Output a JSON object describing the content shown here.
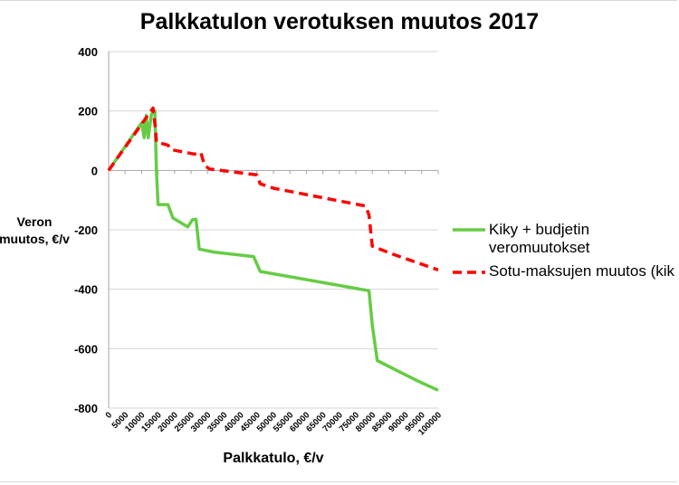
{
  "chart_data": {
    "type": "line",
    "title": "Palkkatulon verotuksen muutos 2017",
    "xlabel": "Palkkatulo, €/v",
    "ylabel": [
      "Veron",
      "muutos, €/v"
    ],
    "ylim": [
      -800,
      400
    ],
    "yticks": [
      400,
      200,
      0,
      -200,
      -400,
      -600,
      -800
    ],
    "xlim": [
      0,
      100000
    ],
    "xticks": [
      0,
      5000,
      10000,
      15000,
      20000,
      25000,
      30000,
      35000,
      40000,
      45000,
      50000,
      55000,
      60000,
      65000,
      70000,
      75000,
      80000,
      85000,
      90000,
      95000,
      100000
    ],
    "grid": "horizontal",
    "legend_position": "right",
    "series": [
      {
        "name_lines": [
          "Kiky + budjetin",
          "veromuutokset"
        ],
        "color": "#66cc44",
        "style": "solid",
        "points": [
          [
            0,
            0
          ],
          [
            10000,
            160
          ],
          [
            10800,
            110
          ],
          [
            11400,
            185
          ],
          [
            12000,
            110
          ],
          [
            13000,
            190
          ],
          [
            14000,
            200
          ],
          [
            14500,
            0
          ],
          [
            15000,
            -115
          ],
          [
            18000,
            -115
          ],
          [
            19500,
            -160
          ],
          [
            24000,
            -190
          ],
          [
            25500,
            -165
          ],
          [
            26500,
            -165
          ],
          [
            27500,
            -265
          ],
          [
            32000,
            -275
          ],
          [
            44000,
            -290
          ],
          [
            46000,
            -340
          ],
          [
            79000,
            -405
          ],
          [
            80000,
            -520
          ],
          [
            81500,
            -640
          ],
          [
            94000,
            -710
          ],
          [
            100000,
            -740
          ]
        ]
      },
      {
        "name_lines": [
          "Sotu-maksujen muutos (kik"
        ],
        "color": "#ff0000",
        "style": "dashed",
        "points": [
          [
            0,
            0
          ],
          [
            13500,
            210
          ],
          [
            14200,
            140
          ],
          [
            14500,
            95
          ],
          [
            18000,
            85
          ],
          [
            19000,
            70
          ],
          [
            26000,
            55
          ],
          [
            28000,
            60
          ],
          [
            29000,
            20
          ],
          [
            30500,
            5
          ],
          [
            45000,
            -15
          ],
          [
            46000,
            -45
          ],
          [
            50000,
            -60
          ],
          [
            78000,
            -120
          ],
          [
            79000,
            -150
          ],
          [
            80000,
            -255
          ],
          [
            87000,
            -285
          ],
          [
            100000,
            -335
          ]
        ]
      }
    ]
  }
}
